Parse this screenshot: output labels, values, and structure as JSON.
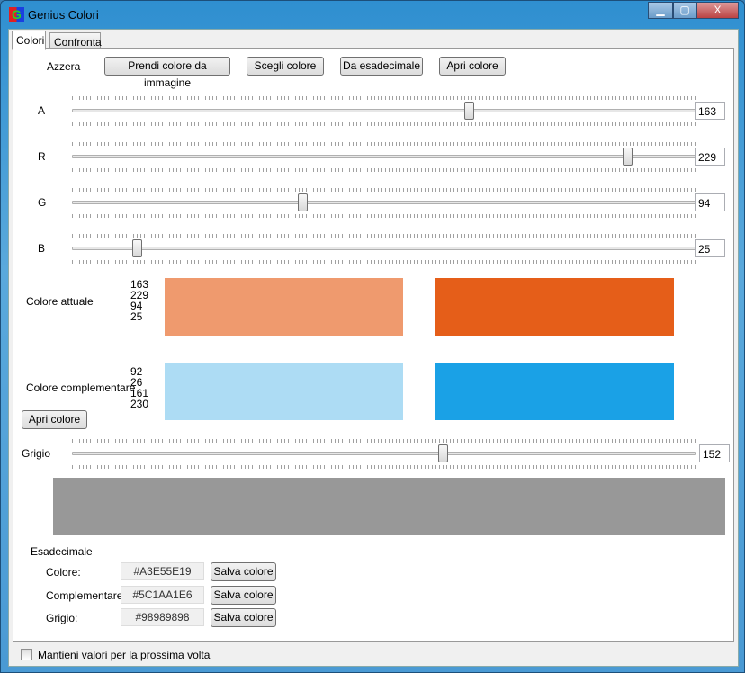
{
  "window": {
    "title": "Genius Colori",
    "minimize": "▁",
    "maximize": "▢",
    "close": "X"
  },
  "tabs": [
    {
      "label": "Colori",
      "active": true
    },
    {
      "label": "Confronta",
      "active": false
    }
  ],
  "toolbar": {
    "reset": "Azzera",
    "pick_from_image": "Prendi colore da immagine",
    "choose_color": "Scegli colore",
    "from_hex": "Da esadecimale",
    "open_color": "Apri colore"
  },
  "sliders": [
    {
      "label": "A",
      "value": "163",
      "level": 163,
      "max": 255
    },
    {
      "label": "R",
      "value": "229",
      "level": 229,
      "max": 255
    },
    {
      "label": "G",
      "value": "94",
      "level": 94,
      "max": 255
    },
    {
      "label": "B",
      "value": "25",
      "level": 25,
      "max": 255
    }
  ],
  "current": {
    "label": "Colore attuale",
    "values": [
      "163",
      "229",
      "94",
      "25"
    ],
    "color_alpha": "#EF9A6E",
    "color_solid": "#E55E19"
  },
  "complementary": {
    "label": "Colore complementare",
    "values": [
      "92",
      "26",
      "161",
      "230"
    ],
    "color_alpha": "#ADDCF4",
    "color_solid": "#1AA1E6",
    "open_button": "Apri colore"
  },
  "gray": {
    "label": "Grigio",
    "value": "152",
    "level": 152,
    "max": 255,
    "color": "#989898"
  },
  "hex": {
    "title": "Esadecimale",
    "rows": [
      {
        "label": "Colore:",
        "value": "#A3E55E19",
        "button": "Salva colore"
      },
      {
        "label": "Complementare:",
        "value": "#5C1AA1E6",
        "button": "Salva colore"
      },
      {
        "label": "Grigio:",
        "value": "#98989898",
        "button": "Salva colore"
      }
    ]
  },
  "footer": {
    "keep_values": "Mantieni valori per la prossima volta",
    "checked": false
  }
}
